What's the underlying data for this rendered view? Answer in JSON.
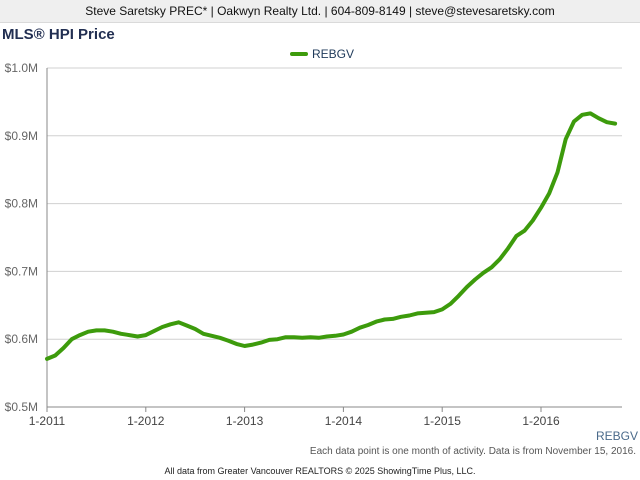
{
  "header": {
    "contact_line": "Steve Saretsky PREC* | Oakwyn Realty Ltd. | 604-809-8149 | steve@stevesaretsky.com"
  },
  "colors": {
    "series": "#3d9b0c",
    "axis": "#888888",
    "grid": "#d0d0d0",
    "title": "#222f52"
  },
  "chart_data": {
    "type": "line",
    "title": "MLS® HPI Price",
    "legend_position": "top-center",
    "grid": true,
    "x_tick_labels": [
      "1-2011",
      "1-2012",
      "1-2013",
      "1-2014",
      "1-2015",
      "1-2016"
    ],
    "y_tick_labels": [
      "$0.5M",
      "$0.6M",
      "$0.7M",
      "$0.8M",
      "$0.9M",
      "$1.0M"
    ],
    "y_ticks": [
      0.5,
      0.6,
      0.7,
      0.8,
      0.9,
      1.0
    ],
    "ylim": [
      0.5,
      1.0
    ],
    "x_range": [
      "2011-01",
      "2016-10"
    ],
    "series": [
      {
        "name": "REBGV",
        "x": [
          "2011-01",
          "2011-02",
          "2011-03",
          "2011-04",
          "2011-05",
          "2011-06",
          "2011-07",
          "2011-08",
          "2011-09",
          "2011-10",
          "2011-11",
          "2011-12",
          "2012-01",
          "2012-02",
          "2012-03",
          "2012-04",
          "2012-05",
          "2012-06",
          "2012-07",
          "2012-08",
          "2012-09",
          "2012-10",
          "2012-11",
          "2012-12",
          "2013-01",
          "2013-02",
          "2013-03",
          "2013-04",
          "2013-05",
          "2013-06",
          "2013-07",
          "2013-08",
          "2013-09",
          "2013-10",
          "2013-11",
          "2013-12",
          "2014-01",
          "2014-02",
          "2014-03",
          "2014-04",
          "2014-05",
          "2014-06",
          "2014-07",
          "2014-08",
          "2014-09",
          "2014-10",
          "2014-11",
          "2014-12",
          "2015-01",
          "2015-02",
          "2015-03",
          "2015-04",
          "2015-05",
          "2015-06",
          "2015-07",
          "2015-08",
          "2015-09",
          "2015-10",
          "2015-11",
          "2015-12",
          "2016-01",
          "2016-02",
          "2016-03",
          "2016-04",
          "2016-05",
          "2016-06",
          "2016-07",
          "2016-08",
          "2016-09",
          "2016-10"
        ],
        "values": [
          0.571,
          0.576,
          0.587,
          0.6,
          0.606,
          0.611,
          0.613,
          0.613,
          0.611,
          0.608,
          0.606,
          0.604,
          0.606,
          0.612,
          0.618,
          0.622,
          0.625,
          0.62,
          0.615,
          0.608,
          0.605,
          0.602,
          0.598,
          0.593,
          0.59,
          0.592,
          0.595,
          0.599,
          0.6,
          0.603,
          0.603,
          0.602,
          0.603,
          0.602,
          0.604,
          0.605,
          0.607,
          0.611,
          0.617,
          0.621,
          0.626,
          0.629,
          0.63,
          0.633,
          0.635,
          0.638,
          0.639,
          0.64,
          0.644,
          0.652,
          0.664,
          0.677,
          0.688,
          0.698,
          0.706,
          0.718,
          0.734,
          0.752,
          0.76,
          0.775,
          0.794,
          0.815,
          0.846,
          0.895,
          0.921,
          0.931,
          0.933,
          0.926,
          0.92,
          0.918
        ]
      }
    ]
  },
  "footnote": "Each data point is one month of activity. Data is from November 15, 2016.",
  "credit": "All data from Greater Vancouver REALTORS © 2025 ShowingTime Plus, LLC."
}
